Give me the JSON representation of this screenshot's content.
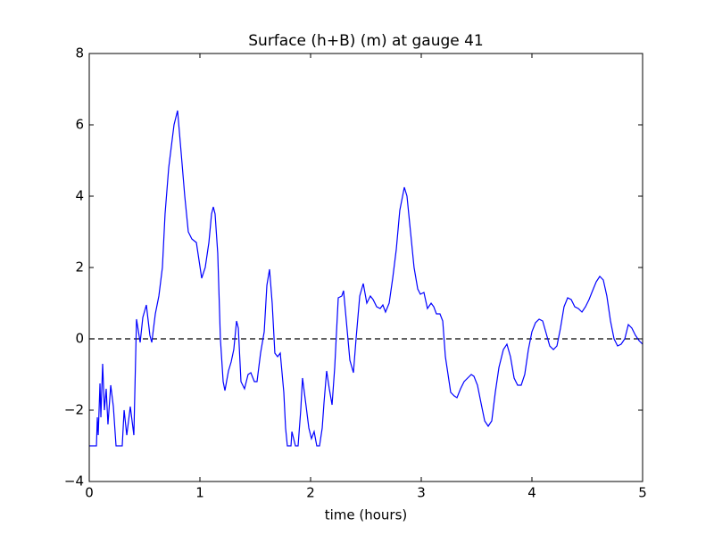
{
  "chart_data": {
    "type": "line",
    "title": "Surface (h+B) (m) at gauge 41",
    "xlabel": "time (hours)",
    "xlim": [
      0,
      5
    ],
    "ylim": [
      -4,
      8
    ],
    "xticks": [
      0,
      1,
      2,
      3,
      4,
      5
    ],
    "yticks": [
      {
        "value": -4,
        "label": "−4"
      },
      {
        "value": -2,
        "label": "−2"
      },
      0,
      2,
      4,
      6,
      8
    ],
    "hline": 0,
    "series": [
      {
        "color": "#0000ff",
        "x": [
          0,
          0.065,
          0.073,
          0.081,
          0.097,
          0.105,
          0.121,
          0.137,
          0.153,
          0.169,
          0.194,
          0.218,
          0.242,
          0.298,
          0.315,
          0.339,
          0.371,
          0.403,
          0.427,
          0.46,
          0.484,
          0.516,
          0.548,
          0.565,
          0.597,
          0.629,
          0.661,
          0.685,
          0.718,
          0.742,
          0.766,
          0.798,
          0.831,
          0.863,
          0.895,
          0.927,
          0.968,
          0.992,
          1.016,
          1.048,
          1.081,
          1.105,
          1.121,
          1.137,
          1.161,
          1.185,
          1.21,
          1.226,
          1.258,
          1.282,
          1.306,
          1.331,
          1.347,
          1.371,
          1.403,
          1.435,
          1.46,
          1.492,
          1.516,
          1.548,
          1.581,
          1.605,
          1.629,
          1.653,
          1.677,
          1.702,
          1.726,
          1.758,
          1.774,
          1.79,
          1.823,
          1.831,
          1.863,
          1.887,
          1.911,
          1.927,
          1.96,
          1.984,
          2.008,
          2.032,
          2.056,
          2.081,
          2.105,
          2.121,
          2.145,
          2.169,
          2.194,
          2.218,
          2.25,
          2.282,
          2.298,
          2.323,
          2.355,
          2.387,
          2.411,
          2.444,
          2.476,
          2.508,
          2.54,
          2.565,
          2.597,
          2.629,
          2.653,
          2.677,
          2.71,
          2.742,
          2.774,
          2.806,
          2.847,
          2.871,
          2.903,
          2.935,
          2.968,
          2.992,
          3.024,
          3.056,
          3.089,
          3.113,
          3.137,
          3.169,
          3.194,
          3.218,
          3.242,
          3.266,
          3.298,
          3.323,
          3.355,
          3.387,
          3.419,
          3.452,
          3.476,
          3.508,
          3.54,
          3.573,
          3.605,
          3.637,
          3.669,
          3.702,
          3.742,
          3.774,
          3.806,
          3.839,
          3.871,
          3.903,
          3.935,
          3.968,
          4.0,
          4.032,
          4.065,
          4.097,
          4.129,
          4.161,
          4.194,
          4.226,
          4.258,
          4.29,
          4.323,
          4.355,
          4.387,
          4.419,
          4.452,
          4.484,
          4.516,
          4.548,
          4.581,
          4.613,
          4.645,
          4.677,
          4.71,
          4.742,
          4.774,
          4.806,
          4.839,
          4.871,
          4.903,
          4.935,
          4.968,
          5.0
        ],
        "values": [
          -3.0,
          -3.0,
          -2.2,
          -2.7,
          -1.25,
          -2.2,
          -0.7,
          -2.0,
          -1.4,
          -2.4,
          -1.3,
          -1.9,
          -3.0,
          -3.0,
          -2.0,
          -2.7,
          -1.9,
          -2.7,
          0.55,
          -0.1,
          0.6,
          0.95,
          0.1,
          -0.1,
          0.7,
          1.2,
          2.0,
          3.5,
          4.8,
          5.4,
          6.0,
          6.4,
          5.2,
          4.0,
          3.0,
          2.8,
          2.7,
          2.2,
          1.7,
          2.0,
          2.7,
          3.5,
          3.7,
          3.5,
          2.4,
          0.0,
          -1.2,
          -1.45,
          -0.9,
          -0.65,
          -0.3,
          0.5,
          0.3,
          -1.2,
          -1.4,
          -1.0,
          -0.95,
          -1.2,
          -1.2,
          -0.4,
          0.2,
          1.5,
          1.95,
          1.0,
          -0.4,
          -0.5,
          -0.4,
          -1.5,
          -2.5,
          -3.0,
          -3.0,
          -2.6,
          -3.0,
          -3.0,
          -2.0,
          -1.1,
          -1.9,
          -2.5,
          -2.8,
          -2.6,
          -3.0,
          -3.0,
          -2.5,
          -1.8,
          -0.9,
          -1.4,
          -1.85,
          -0.8,
          1.15,
          1.2,
          1.35,
          0.5,
          -0.6,
          -0.95,
          0.0,
          1.2,
          1.55,
          1.0,
          1.2,
          1.1,
          0.9,
          0.85,
          0.95,
          0.75,
          1.0,
          1.7,
          2.5,
          3.6,
          4.25,
          4.0,
          3.0,
          2.0,
          1.4,
          1.25,
          1.3,
          0.85,
          1.0,
          0.9,
          0.7,
          0.7,
          0.5,
          -0.5,
          -1.0,
          -1.5,
          -1.6,
          -1.65,
          -1.4,
          -1.2,
          -1.1,
          -1.0,
          -1.05,
          -1.3,
          -1.8,
          -2.3,
          -2.45,
          -2.3,
          -1.5,
          -0.8,
          -0.3,
          -0.15,
          -0.5,
          -1.1,
          -1.3,
          -1.3,
          -1.0,
          -0.3,
          0.2,
          0.45,
          0.55,
          0.5,
          0.15,
          -0.2,
          -0.3,
          -0.2,
          0.3,
          0.9,
          1.15,
          1.1,
          0.9,
          0.85,
          0.75,
          0.9,
          1.1,
          1.35,
          1.6,
          1.75,
          1.65,
          1.2,
          0.5,
          0.0,
          -0.2,
          -0.15,
          0.0,
          0.4,
          0.3,
          0.1,
          -0.05,
          -0.15
        ]
      }
    ]
  }
}
